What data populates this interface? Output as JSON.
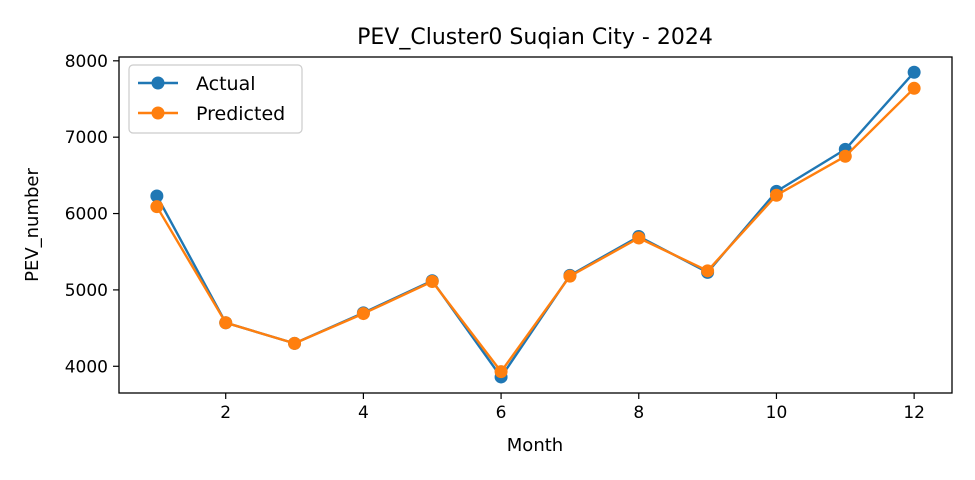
{
  "chart_data": {
    "type": "line",
    "title": "PEV_Cluster0 Suqian City - 2024",
    "xlabel": "Month",
    "ylabel": "PEV_number",
    "x": [
      1,
      2,
      3,
      4,
      5,
      6,
      7,
      8,
      9,
      10,
      11,
      12
    ],
    "xlim": [
      0.45,
      12.55
    ],
    "ylim": [
      3650,
      8050
    ],
    "xticks": [
      2,
      4,
      6,
      8,
      10,
      12
    ],
    "yticks": [
      4000,
      5000,
      6000,
      7000,
      8000
    ],
    "grid": false,
    "legend_position": "upper-left",
    "series": [
      {
        "name": "Actual",
        "color": "#1f77b4",
        "values": [
          6230,
          4570,
          4300,
          4700,
          5120,
          3860,
          5190,
          5700,
          5230,
          6290,
          6840,
          7850
        ]
      },
      {
        "name": "Predicted",
        "color": "#ff7f0e",
        "values": [
          6090,
          4570,
          4300,
          4690,
          5110,
          3930,
          5180,
          5680,
          5250,
          6240,
          6750,
          7640
        ]
      }
    ]
  }
}
